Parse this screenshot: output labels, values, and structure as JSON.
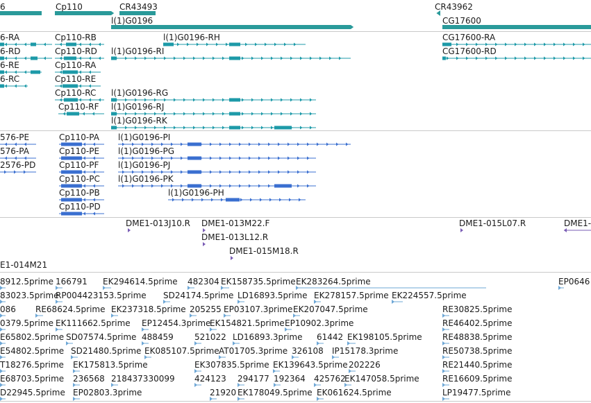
{
  "colors": {
    "gene": "#2a9a9a",
    "cds_teal": "#1d9aa8",
    "cds_blue": "#3a6fd0",
    "clone": "#7a5db5",
    "est": "#6ea7d6",
    "separator": "#c9c9c9"
  },
  "genes": [
    {
      "label": "6"
    },
    {
      "label": "Cp110"
    },
    {
      "label": "CR43493"
    },
    {
      "label": "l(1)G0196"
    },
    {
      "label": "CR43962"
    },
    {
      "label": "CG17600"
    }
  ],
  "transcripts": [
    {
      "label": "6-RA"
    },
    {
      "label": "Cp110-RB"
    },
    {
      "label": "l(1)G0196-RH"
    },
    {
      "label": "CG17600-RA"
    },
    {
      "label": "6-RD"
    },
    {
      "label": "Cp110-RD"
    },
    {
      "label": "l(1)G0196-RI"
    },
    {
      "label": "CG17600-RD"
    },
    {
      "label": "6-RE"
    },
    {
      "label": "Cp110-RA"
    },
    {
      "label": "6-RC"
    },
    {
      "label": "Cp110-RE"
    },
    {
      "label": "Cp110-RC"
    },
    {
      "label": "l(1)G0196-RG"
    },
    {
      "label": "Cp110-RF"
    },
    {
      "label": "l(1)G0196-RJ"
    },
    {
      "label": "l(1)G0196-RK"
    }
  ],
  "proteins": [
    {
      "label": "576-PE"
    },
    {
      "label": "Cp110-PA"
    },
    {
      "label": "l(1)G0196-PI"
    },
    {
      "label": "576-PA"
    },
    {
      "label": "Cp110-PE"
    },
    {
      "label": "l(1)G0196-PG"
    },
    {
      "label": "2576-PD"
    },
    {
      "label": "Cp110-PF"
    },
    {
      "label": "l(1)G0196-PJ"
    },
    {
      "label": "Cp110-PC"
    },
    {
      "label": "l(1)G0196-PK"
    },
    {
      "label": "Cp110-PB"
    },
    {
      "label": "l(1)G0196-PH"
    },
    {
      "label": "Cp110-PD"
    }
  ],
  "clones": [
    {
      "label": "DME1-013J10.R"
    },
    {
      "label": "DME1-013M22.F"
    },
    {
      "label": "DME1-015L07.R"
    },
    {
      "label": "DME1-"
    },
    {
      "label": "DME1-013L12.R"
    },
    {
      "label": "DME1-015M18.R"
    },
    {
      "label": "E1-014M21"
    }
  ],
  "ests": [
    {
      "label": "8912.5prime"
    },
    {
      "label": "166791"
    },
    {
      "label": "EK294614.5prime"
    },
    {
      "label": "482304"
    },
    {
      "label": "EK158735.5prime"
    },
    {
      "label": "EK283264.5prime"
    },
    {
      "label": "EP0646"
    },
    {
      "label": "83023.5prime"
    },
    {
      "label": "RP004423153.5prime"
    },
    {
      "label": "SD24174.5prime"
    },
    {
      "label": "LD16893.5prime"
    },
    {
      "label": "EK278157.5prime"
    },
    {
      "label": "EK224557.5prime"
    },
    {
      "label": "086"
    },
    {
      "label": "RE68624.5prime"
    },
    {
      "label": "EK237318.5prime"
    },
    {
      "label": "205255"
    },
    {
      "label": "EP03107.3prime"
    },
    {
      "label": "EK207047.5prime"
    },
    {
      "label": "RE30825.5prime"
    },
    {
      "label": "0379.5prime"
    },
    {
      "label": "EK111662.5prime"
    },
    {
      "label": "EP12454.3prime"
    },
    {
      "label": "EK154821.5prime"
    },
    {
      "label": "EP10902.3prime"
    },
    {
      "label": "RE46402.5prime"
    },
    {
      "label": "E65802.5prime"
    },
    {
      "label": "SD07574.5prime"
    },
    {
      "label": "488459"
    },
    {
      "label": "521022"
    },
    {
      "label": "LD16893.3prime"
    },
    {
      "label": "61442"
    },
    {
      "label": "EK198105.5prime"
    },
    {
      "label": "RE48838.5prime"
    },
    {
      "label": "E54802.5prime"
    },
    {
      "label": "SD21480.5prime"
    },
    {
      "label": "EK085107.5prime"
    },
    {
      "label": "AT01705.3prime"
    },
    {
      "label": "326108"
    },
    {
      "label": "IP15178.3prime"
    },
    {
      "label": "RE50738.5prime"
    },
    {
      "label": "T18276.5prime"
    },
    {
      "label": "EK175813.5prime"
    },
    {
      "label": "EK307835.5prime"
    },
    {
      "label": "EK139643.5prime"
    },
    {
      "label": "202226"
    },
    {
      "label": "RE21440.5prime"
    },
    {
      "label": "E68703.5prime"
    },
    {
      "label": "236568"
    },
    {
      "label": "218437330099"
    },
    {
      "label": "424123"
    },
    {
      "label": "294177"
    },
    {
      "label": "192364"
    },
    {
      "label": "425762"
    },
    {
      "label": "EK147058.5prime"
    },
    {
      "label": "RE16609.5prime"
    },
    {
      "label": "D22945.5prime"
    },
    {
      "label": "EP02803.3prime"
    },
    {
      "label": "21920"
    },
    {
      "label": "EK178049.5prime"
    },
    {
      "label": "EK061624.5prime"
    },
    {
      "label": "LP19477.5prime"
    }
  ]
}
